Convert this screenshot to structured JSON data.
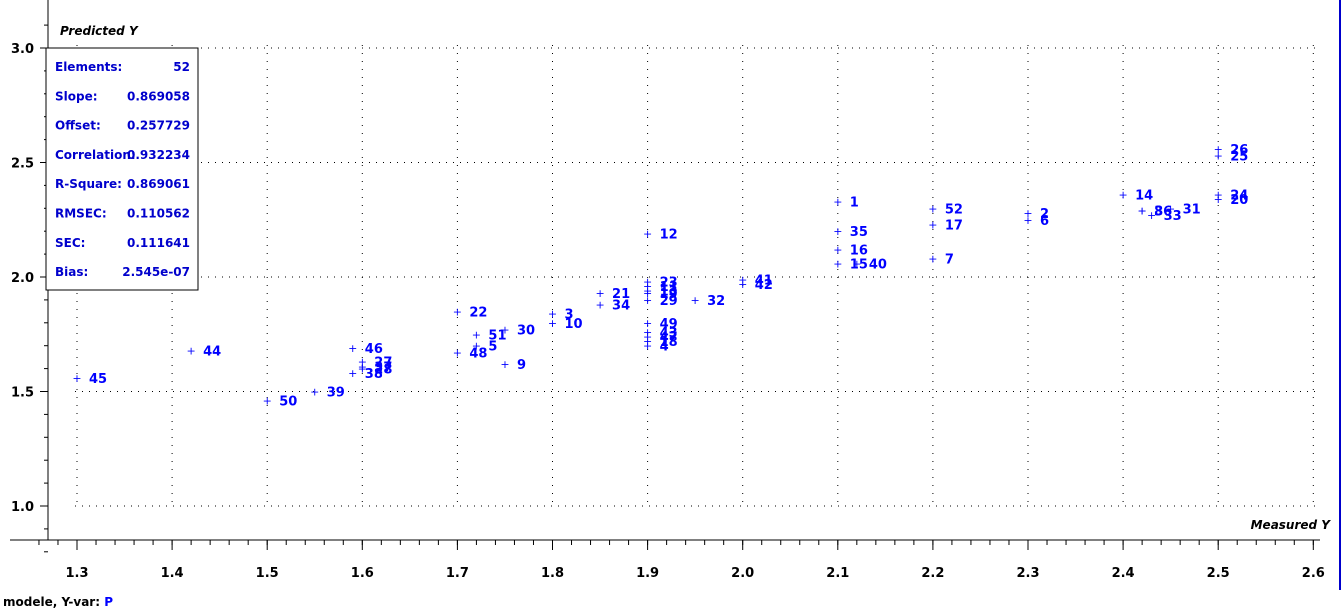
{
  "chart_data": {
    "type": "scatter",
    "title": "",
    "ylabel": "Predicted Y",
    "xlabel": "Measured Y",
    "xlim": [
      1.27,
      2.62
    ],
    "ylim": [
      0.78,
      3.13
    ],
    "xticks": [
      "1.3",
      "1.4",
      "1.5",
      "1.6",
      "1.7",
      "1.8",
      "1.9",
      "2.0",
      "2.1",
      "2.2",
      "2.3",
      "2.4",
      "2.5",
      "2.6"
    ],
    "yticks": [
      "1.0",
      "1.5",
      "2.0",
      "2.5",
      "3.0"
    ],
    "grid": true,
    "points": [
      {
        "label": "1",
        "x": 2.1,
        "y": 2.33
      },
      {
        "label": "2",
        "x": 2.3,
        "y": 2.28
      },
      {
        "label": "3",
        "x": 1.8,
        "y": 1.84
      },
      {
        "label": "5",
        "x": 1.72,
        "y": 1.7
      },
      {
        "label": "6",
        "x": 2.3,
        "y": 2.25
      },
      {
        "label": "7",
        "x": 2.2,
        "y": 2.08
      },
      {
        "label": "8",
        "x": 2.42,
        "y": 2.29
      },
      {
        "label": "9",
        "x": 1.75,
        "y": 1.62
      },
      {
        "label": "10",
        "x": 1.8,
        "y": 1.8
      },
      {
        "label": "12",
        "x": 1.9,
        "y": 2.19
      },
      {
        "label": "14",
        "x": 2.4,
        "y": 2.36
      },
      {
        "label": "15",
        "x": 2.1,
        "y": 2.06
      },
      {
        "label": "16",
        "x": 2.1,
        "y": 2.12
      },
      {
        "label": "17",
        "x": 2.2,
        "y": 2.23
      },
      {
        "label": "19",
        "x": 1.9,
        "y": 1.93
      },
      {
        "label": "20",
        "x": 2.5,
        "y": 2.34
      },
      {
        "label": "21",
        "x": 1.85,
        "y": 1.93
      },
      {
        "label": "22",
        "x": 1.7,
        "y": 1.85
      },
      {
        "label": "23",
        "x": 1.9,
        "y": 1.98
      },
      {
        "label": "24",
        "x": 2.5,
        "y": 2.36
      },
      {
        "label": "25",
        "x": 2.5,
        "y": 2.53
      },
      {
        "label": "26",
        "x": 2.5,
        "y": 2.56
      },
      {
        "label": "27",
        "x": 1.6,
        "y": 1.63
      },
      {
        "label": "28",
        "x": 1.6,
        "y": 1.6
      },
      {
        "label": "29",
        "x": 1.9,
        "y": 1.9
      },
      {
        "label": "30",
        "x": 1.75,
        "y": 1.77
      },
      {
        "label": "31",
        "x": 2.45,
        "y": 2.3
      },
      {
        "label": "32",
        "x": 1.95,
        "y": 1.9
      },
      {
        "label": "33",
        "x": 2.43,
        "y": 2.27
      },
      {
        "label": "34",
        "x": 1.85,
        "y": 1.88
      },
      {
        "label": "35",
        "x": 2.1,
        "y": 2.2
      },
      {
        "label": "36",
        "x": 2.42,
        "y": 2.29
      },
      {
        "label": "38",
        "x": 1.59,
        "y": 1.58
      },
      {
        "label": "39",
        "x": 1.55,
        "y": 1.5
      },
      {
        "label": "40",
        "x": 2.12,
        "y": 2.06
      },
      {
        "label": "41",
        "x": 2.0,
        "y": 1.99
      },
      {
        "label": "42",
        "x": 2.0,
        "y": 1.97
      },
      {
        "label": "43",
        "x": 1.9,
        "y": 1.76
      },
      {
        "label": "44",
        "x": 1.42,
        "y": 1.68
      },
      {
        "label": "45",
        "x": 1.3,
        "y": 1.56
      },
      {
        "label": "46",
        "x": 1.59,
        "y": 1.69
      },
      {
        "label": "48",
        "x": 1.7,
        "y": 1.67
      },
      {
        "label": "49",
        "x": 1.9,
        "y": 1.8
      },
      {
        "label": "50",
        "x": 1.5,
        "y": 1.46
      },
      {
        "label": "51",
        "x": 1.72,
        "y": 1.75
      },
      {
        "label": "52",
        "x": 2.2,
        "y": 2.3
      },
      {
        "label": "11",
        "x": 1.9,
        "y": 1.96
      },
      {
        "label": "18",
        "x": 1.9,
        "y": 1.72
      },
      {
        "label": "4",
        "x": 1.9,
        "y": 1.7
      },
      {
        "label": "13",
        "x": 1.9,
        "y": 1.94
      },
      {
        "label": "37",
        "x": 1.6,
        "y": 1.61
      },
      {
        "label": "47",
        "x": 1.9,
        "y": 1.74
      }
    ],
    "stats": [
      {
        "key": "Elements:",
        "value": "52"
      },
      {
        "key": "Slope:",
        "value": "0.869058"
      },
      {
        "key": "Offset:",
        "value": "0.257729"
      },
      {
        "key": "Correlation:",
        "value": "0.932234"
      },
      {
        "key": "R-Square:",
        "value": "0.869061"
      },
      {
        "key": "RMSEC:",
        "value": "0.110562"
      },
      {
        "key": "SEC:",
        "value": "0.111641"
      },
      {
        "key": "Bias:",
        "value": "2.545e-07"
      }
    ]
  },
  "footer": {
    "prefix": "modele, Y-var: ",
    "variable": "P"
  },
  "colors": {
    "points": "#0000ff",
    "stats_text": "#0000cc",
    "axes": "#000000",
    "frame_right": "#0000cc"
  }
}
